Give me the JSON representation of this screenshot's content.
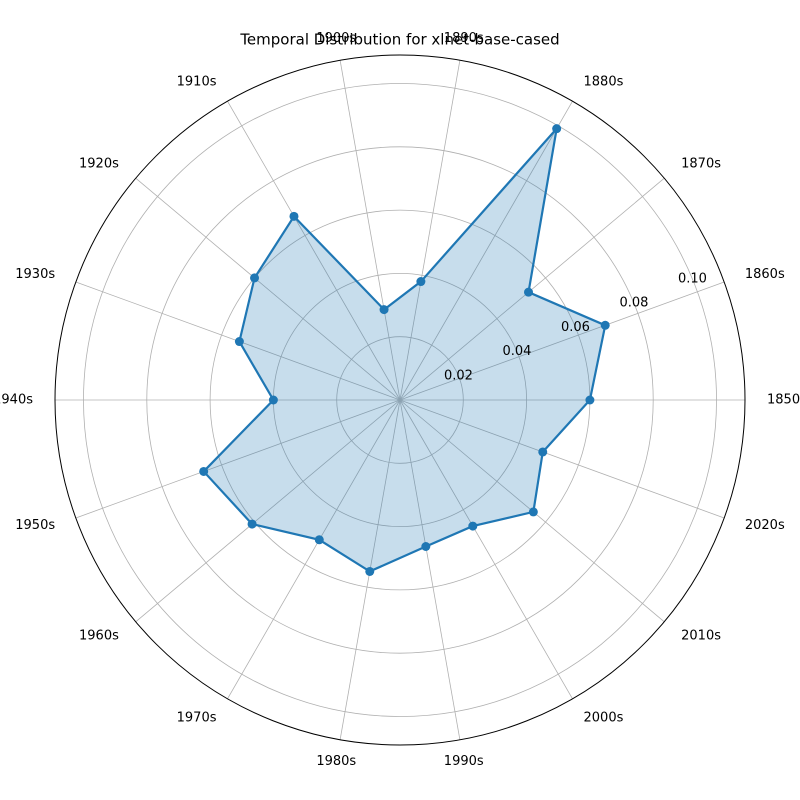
{
  "chart_data": {
    "type": "radar",
    "title": "Temporal Distribution for xlnet-base-cased",
    "categories": [
      "1850s",
      "1860s",
      "1870s",
      "1880s",
      "1890s",
      "1900s",
      "1910s",
      "1920s",
      "1930s",
      "1940s",
      "1950s",
      "1960s",
      "1970s",
      "1980s",
      "1990s",
      "2000s",
      "2010s",
      "2020s"
    ],
    "values": [
      0.06,
      0.069,
      0.053,
      0.099,
      0.038,
      0.029,
      0.067,
      0.06,
      0.054,
      0.04,
      0.066,
      0.061,
      0.051,
      0.055,
      0.047,
      0.046,
      0.055,
      0.048
    ],
    "color": "#1f77b4",
    "ylim": [
      0,
      0.109
    ],
    "yticks": [
      0.02,
      0.04,
      0.06,
      {
        "value": 0.1,
        "label": "0.10"
      },
      0.08
    ],
    "grid": true
  }
}
